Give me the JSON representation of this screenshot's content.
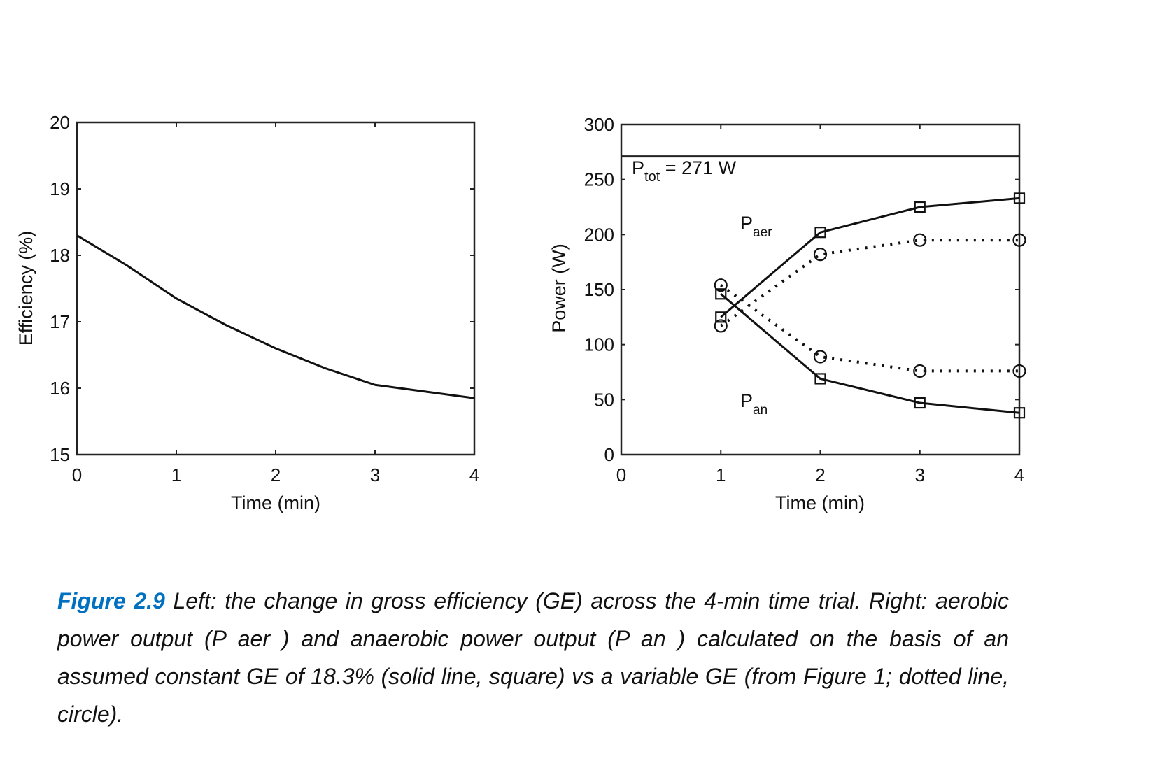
{
  "chart_data": [
    {
      "type": "line",
      "title": "",
      "xlabel": "Time (min)",
      "ylabel": "Efficiency (%)",
      "xlim": [
        0,
        4
      ],
      "ylim": [
        15,
        20
      ],
      "xticks": [
        "0",
        "1",
        "2",
        "3",
        "4"
      ],
      "yticks": [
        "15",
        "16",
        "17",
        "18",
        "19",
        "20"
      ],
      "grid": false,
      "series": [
        {
          "name": "Gross efficiency",
          "style": "solid",
          "x": [
            0,
            0.5,
            1,
            1.5,
            2,
            2.5,
            3,
            3.5,
            4
          ],
          "y": [
            18.3,
            17.85,
            17.35,
            16.95,
            16.6,
            16.3,
            16.05,
            15.95,
            15.85
          ]
        }
      ]
    },
    {
      "type": "line",
      "title": "",
      "xlabel": "Time (min)",
      "ylabel": "Power (W)",
      "xlim": [
        0,
        4
      ],
      "ylim": [
        0,
        300
      ],
      "xticks": [
        "0",
        "1",
        "2",
        "3",
        "4"
      ],
      "yticks": [
        "0",
        "50",
        "100",
        "150",
        "200",
        "250",
        "300"
      ],
      "grid": false,
      "reference_line": {
        "value": 271,
        "label_main": "P",
        "label_sub": "tot",
        "label_rest": " = 271 W"
      },
      "annotations": [
        {
          "main": "P",
          "sub": "aer",
          "x": 1.25,
          "y": 205
        },
        {
          "main": "P",
          "sub": "an",
          "x": 1.25,
          "y": 48
        }
      ],
      "series": [
        {
          "name": "P aer (constant GE)",
          "style": "solid",
          "marker": "square",
          "x": [
            1,
            2,
            3,
            4
          ],
          "y": [
            125,
            202,
            225,
            233
          ]
        },
        {
          "name": "P an (constant GE)",
          "style": "solid",
          "marker": "square",
          "x": [
            1,
            2,
            3,
            4
          ],
          "y": [
            146,
            69,
            47,
            38
          ]
        },
        {
          "name": "P aer (variable GE)",
          "style": "dotted",
          "marker": "circle",
          "x": [
            1,
            2,
            3,
            4
          ],
          "y": [
            117,
            182,
            195,
            195
          ]
        },
        {
          "name": "P an (variable GE)",
          "style": "dotted",
          "marker": "circle",
          "x": [
            1,
            2,
            3,
            4
          ],
          "y": [
            154,
            89,
            76,
            76
          ]
        }
      ]
    }
  ],
  "caption": {
    "figure_label": "Figure 2.9",
    "text": " Left: the change in gross efficiency (GE) across the 4-min time trial. Right: aerobic power output (P aer ) and anaerobic power output (P an ) calculated on the basis of an assumed constant GE of 18.3% (solid line, square) vs a variable GE (from Figure 1; dotted line, circle)."
  },
  "colors": {
    "caption_label": "#0070c0",
    "ink": "#111111"
  }
}
